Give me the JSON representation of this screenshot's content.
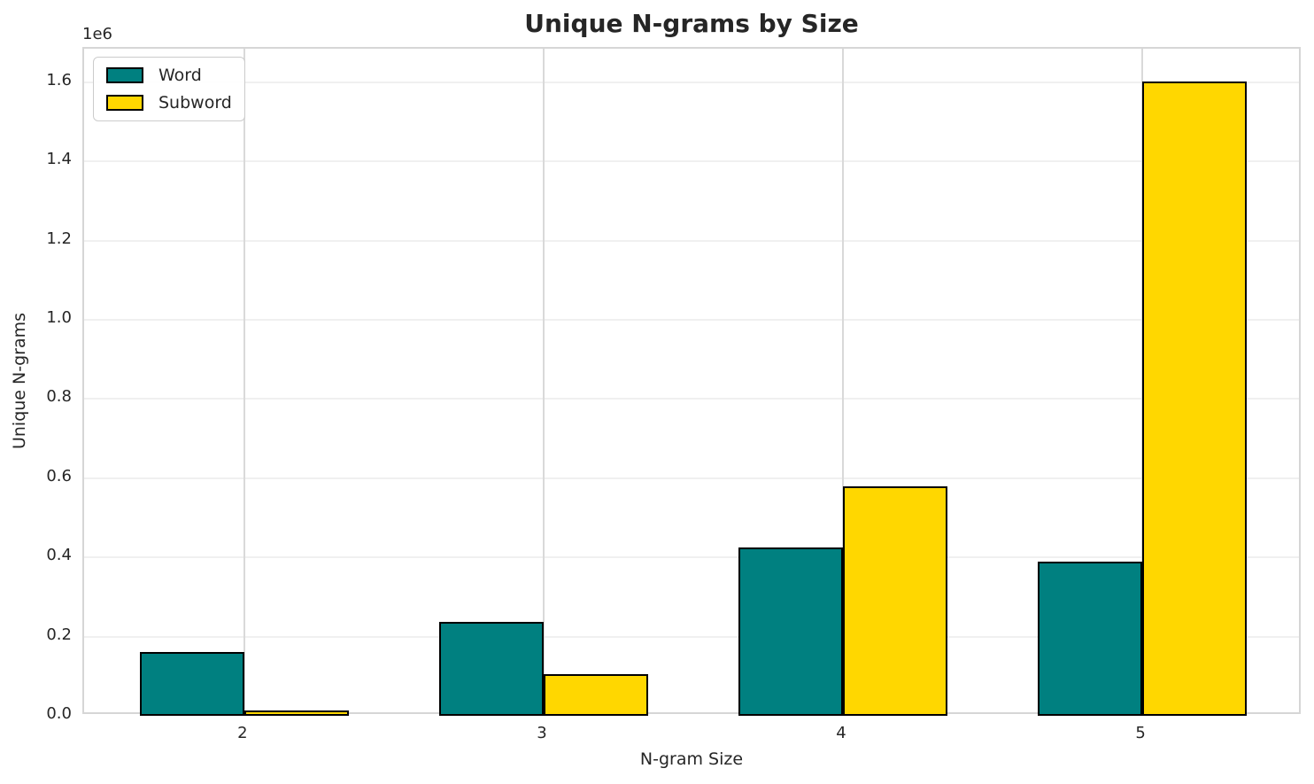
{
  "chart_data": {
    "type": "bar",
    "title": "Unique N-grams by Size",
    "xlabel": "N-gram Size",
    "ylabel": "Unique N-grams",
    "y_offset_label": "1e6",
    "categories": [
      "2",
      "3",
      "4",
      "5"
    ],
    "series": [
      {
        "name": "Word",
        "color": "#008080",
        "values": [
          160000,
          238000,
          426000,
          389000
        ]
      },
      {
        "name": "Subword",
        "color": "#FFD700",
        "values": [
          14000,
          105000,
          580000,
          1603000
        ]
      }
    ],
    "bar_edge_color": "#000000",
    "ylim": [
      0,
      1685000
    ],
    "yticks": [
      0,
      200000,
      400000,
      600000,
      800000,
      1000000,
      1200000,
      1400000,
      1600000
    ],
    "ytick_labels": [
      "0.0",
      "0.2",
      "0.4",
      "0.6",
      "0.8",
      "1.0",
      "1.2",
      "1.4",
      "1.6"
    ],
    "grid": true,
    "legend_position": "upper left"
  },
  "legend": {
    "items": [
      {
        "label": "Word"
      },
      {
        "label": "Subword"
      }
    ]
  }
}
